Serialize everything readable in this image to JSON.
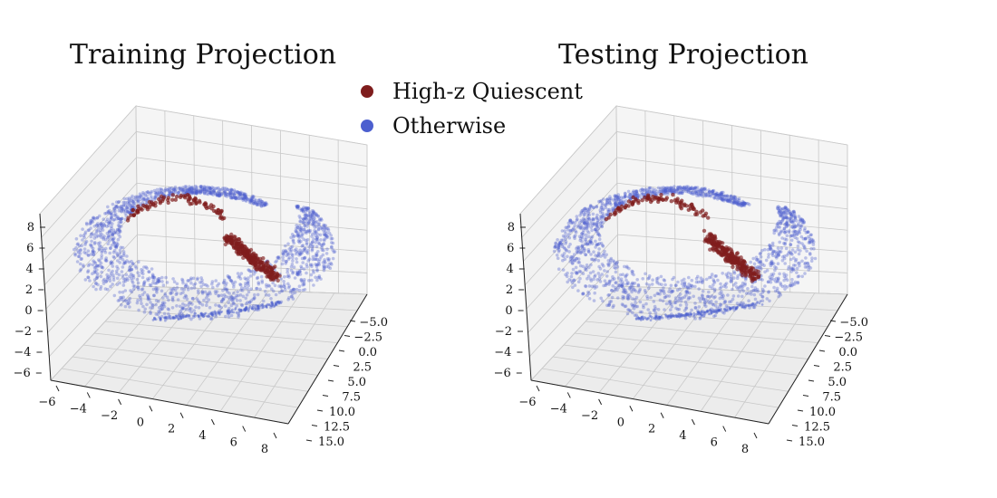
{
  "legend": {
    "placement": "top-center",
    "entries": [
      {
        "label": "High-z Quiescent",
        "color": "#7f1d1d"
      },
      {
        "label": "Otherwise",
        "color": "#4c5fcf"
      }
    ]
  },
  "chart_data": [
    {
      "type": "scatter",
      "subtype": "3d-scatter",
      "title": "Training Projection",
      "xlabel": "",
      "ylabel": "",
      "zlabel": "",
      "xlim": [
        -6,
        8
      ],
      "ylim": [
        -5,
        15
      ],
      "zlim": [
        -6,
        8
      ],
      "x_ticks": [
        "−6",
        "−4",
        "−2",
        "0",
        "2",
        "4",
        "6",
        "8"
      ],
      "y_ticks": [
        "−5.0",
        "−2.5",
        "0.0",
        "2.5",
        "5.0",
        "7.5",
        "10.0",
        "12.5",
        "15.0"
      ],
      "z_ticks": [
        "8",
        "6",
        "4",
        "2",
        "0",
        "−2",
        "−4",
        "−6"
      ],
      "grid": true,
      "series": [
        {
          "name": "Otherwise",
          "color": "#4c5fcf",
          "shape": "helical band (curled ring)",
          "n_points_approx": 20000
        },
        {
          "name": "High-z Quiescent",
          "color": "#7f1d1d",
          "shape": "cluster along inner edge of ring",
          "n_points_approx": 400
        }
      ]
    },
    {
      "type": "scatter",
      "subtype": "3d-scatter",
      "title": "Testing Projection",
      "xlabel": "",
      "ylabel": "",
      "zlabel": "",
      "xlim": [
        -6,
        8
      ],
      "ylim": [
        -5,
        15
      ],
      "zlim": [
        -6,
        8
      ],
      "x_ticks": [
        "−6",
        "−4",
        "−2",
        "0",
        "2",
        "4",
        "6",
        "8"
      ],
      "y_ticks": [
        "−5.0",
        "−2.5",
        "0.0",
        "2.5",
        "5.0",
        "7.5",
        "10.0",
        "12.5",
        "15.0"
      ],
      "z_ticks": [
        "8",
        "6",
        "4",
        "2",
        "0",
        "−2",
        "−4",
        "−6"
      ],
      "grid": true,
      "series": [
        {
          "name": "Otherwise",
          "color": "#4c5fcf",
          "shape": "helical band (curled ring)",
          "n_points_approx": 20000
        },
        {
          "name": "High-z Quiescent",
          "color": "#7f1d1d",
          "shape": "cluster along inner edge of ring",
          "n_points_approx": 400
        }
      ]
    }
  ]
}
